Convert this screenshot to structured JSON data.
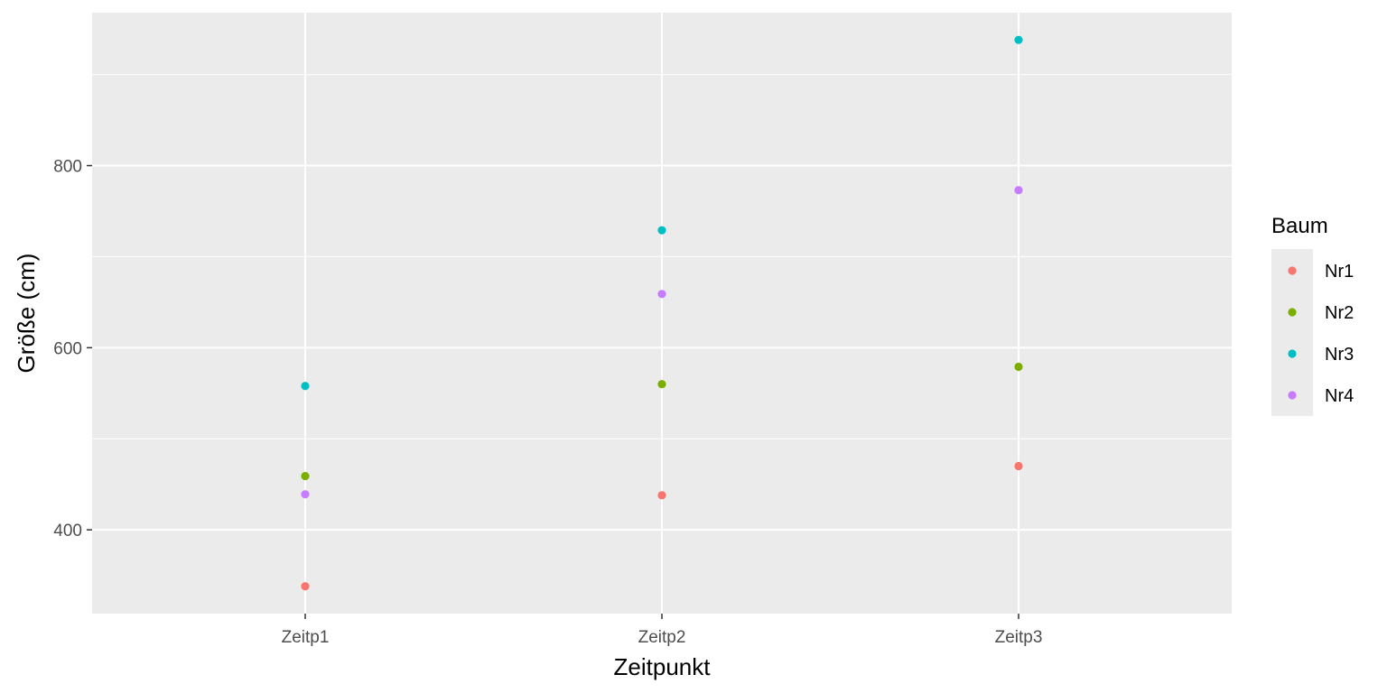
{
  "chart_data": {
    "type": "scatter",
    "xlabel": "Zeitpunkt",
    "ylabel": "Größe (cm)",
    "categories": [
      "Zeitp1",
      "Zeitp2",
      "Zeitp3"
    ],
    "ylim": [
      308,
      968
    ],
    "yticks": [
      400,
      600,
      800
    ],
    "yticks_minor": [
      500,
      700,
      900
    ],
    "grid": true,
    "background": "#ebebeb",
    "legend": {
      "title": "Baum",
      "position": "right"
    },
    "series": [
      {
        "name": "Nr1",
        "color": "#f8766d",
        "values": [
          338,
          438,
          470
        ]
      },
      {
        "name": "Nr2",
        "color": "#7cae00",
        "values": [
          459,
          560,
          579
        ]
      },
      {
        "name": "Nr3",
        "color": "#00bfc4",
        "values": [
          558,
          729,
          938
        ]
      },
      {
        "name": "Nr4",
        "color": "#c77cff",
        "values": [
          439,
          659,
          773
        ]
      }
    ]
  }
}
